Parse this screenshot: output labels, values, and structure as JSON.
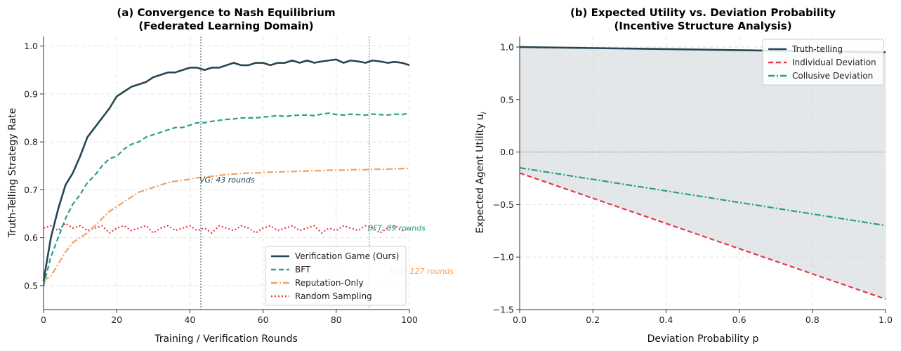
{
  "chart_data": [
    {
      "type": "line",
      "title_line1": "(a) Convergence to Nash Equilibrium",
      "title_line2": "(Federated Learning Domain)",
      "xlabel": "Training / Verification Rounds",
      "ylabel": "Truth-Telling Strategy Rate",
      "xlim": [
        0,
        100
      ],
      "ylim": [
        0.45,
        1.02
      ],
      "xticks": [
        0,
        20,
        40,
        60,
        80,
        100
      ],
      "yticks": [
        0.5,
        0.6,
        0.7,
        0.8,
        0.9,
        1.0
      ],
      "xtick_labels": [
        "0",
        "20",
        "40",
        "60",
        "80",
        "100"
      ],
      "ytick_labels": [
        "0.5",
        "0.6",
        "0.7",
        "0.8",
        "0.9",
        "1.0"
      ],
      "grid": true,
      "legend_position": "lower-right",
      "x": [
        0,
        2,
        4,
        6,
        8,
        10,
        12,
        14,
        16,
        18,
        20,
        22,
        24,
        26,
        28,
        30,
        32,
        34,
        36,
        38,
        40,
        42,
        44,
        46,
        48,
        50,
        52,
        54,
        56,
        58,
        60,
        62,
        64,
        66,
        68,
        70,
        72,
        74,
        76,
        78,
        80,
        82,
        84,
        86,
        88,
        90,
        92,
        94,
        96,
        98,
        100
      ],
      "series": [
        {
          "name": "Verification Game (Ours)",
          "color": "#264653",
          "style": "solid",
          "values": [
            0.51,
            0.6,
            0.66,
            0.71,
            0.735,
            0.77,
            0.81,
            0.83,
            0.85,
            0.87,
            0.895,
            0.905,
            0.915,
            0.92,
            0.925,
            0.935,
            0.94,
            0.945,
            0.945,
            0.95,
            0.955,
            0.955,
            0.95,
            0.955,
            0.955,
            0.96,
            0.965,
            0.96,
            0.96,
            0.965,
            0.965,
            0.96,
            0.965,
            0.965,
            0.97,
            0.965,
            0.97,
            0.965,
            0.968,
            0.97,
            0.972,
            0.965,
            0.97,
            0.968,
            0.965,
            0.97,
            0.968,
            0.965,
            0.967,
            0.965,
            0.96
          ]
        },
        {
          "name": "BFT",
          "color": "#2a9d8f",
          "style": "dashed",
          "values": [
            0.5,
            0.56,
            0.6,
            0.64,
            0.67,
            0.69,
            0.715,
            0.73,
            0.75,
            0.765,
            0.77,
            0.785,
            0.795,
            0.8,
            0.81,
            0.815,
            0.82,
            0.825,
            0.83,
            0.83,
            0.835,
            0.84,
            0.84,
            0.843,
            0.845,
            0.847,
            0.848,
            0.85,
            0.85,
            0.85,
            0.852,
            0.853,
            0.855,
            0.853,
            0.855,
            0.856,
            0.856,
            0.855,
            0.858,
            0.86,
            0.857,
            0.856,
            0.858,
            0.857,
            0.856,
            0.858,
            0.857,
            0.856,
            0.858,
            0.857,
            0.86
          ]
        },
        {
          "name": "Reputation-Only",
          "color": "#f4a261",
          "style": "dashdot",
          "values": [
            0.51,
            0.52,
            0.545,
            0.57,
            0.59,
            0.6,
            0.61,
            0.625,
            0.64,
            0.655,
            0.665,
            0.675,
            0.685,
            0.695,
            0.7,
            0.705,
            0.71,
            0.715,
            0.718,
            0.72,
            0.722,
            0.725,
            0.727,
            0.728,
            0.73,
            0.732,
            0.733,
            0.734,
            0.735,
            0.735,
            0.736,
            0.737,
            0.737,
            0.738,
            0.738,
            0.739,
            0.739,
            0.74,
            0.74,
            0.741,
            0.741,
            0.741,
            0.742,
            0.742,
            0.742,
            0.743,
            0.743,
            0.743,
            0.744,
            0.744,
            0.745
          ]
        },
        {
          "name": "Random Sampling",
          "color": "#e63946",
          "style": "dotted",
          "values": [
            0.62,
            0.625,
            0.615,
            0.63,
            0.62,
            0.625,
            0.615,
            0.62,
            0.625,
            0.61,
            0.62,
            0.625,
            0.615,
            0.62,
            0.625,
            0.61,
            0.62,
            0.625,
            0.615,
            0.62,
            0.625,
            0.615,
            0.62,
            0.61,
            0.625,
            0.62,
            0.615,
            0.625,
            0.62,
            0.61,
            0.62,
            0.625,
            0.615,
            0.62,
            0.625,
            0.615,
            0.62,
            0.625,
            0.61,
            0.62,
            0.615,
            0.625,
            0.62,
            0.615,
            0.625,
            0.62,
            0.61,
            0.62,
            0.625,
            0.615,
            0.62
          ]
        }
      ],
      "vlines": [
        {
          "x": 43,
          "color": "#264653"
        },
        {
          "x": 89,
          "color": "#2a9d8f"
        }
      ],
      "annotations": [
        {
          "text": "VG: 43 rounds",
          "x": 43,
          "y": 0.715,
          "color": "#264653"
        },
        {
          "text": "BFT: 89 rounds",
          "x": 89,
          "y": 0.615,
          "color": "#2a9d8f"
        },
        {
          "text": "Rep: 127 rounds",
          "x": 95,
          "y": 0.525,
          "color": "#f4a261"
        }
      ]
    },
    {
      "type": "line",
      "title_line1": "(b) Expected Utility vs. Deviation Probability",
      "title_line2": "(Incentive Structure Analysis)",
      "xlabel": "Deviation Probability p",
      "ylabel": "Expected Agent Utility u",
      "ylabel_sub": "i",
      "xlim": [
        0,
        1
      ],
      "ylim": [
        -1.5,
        1.1
      ],
      "xticks": [
        0,
        0.2,
        0.4,
        0.6,
        0.8,
        1.0
      ],
      "yticks": [
        -1.5,
        -1.0,
        -0.5,
        0.0,
        0.5,
        1.0
      ],
      "xtick_labels": [
        "0.0",
        "0.2",
        "0.4",
        "0.6",
        "0.8",
        "1.0"
      ],
      "ytick_labels": [
        "−1.5",
        "−1.0",
        "−0.5",
        "0.0",
        "0.5",
        "1.0"
      ],
      "grid": true,
      "legend_position": "top-right",
      "fill_color": "#264653",
      "zero_line": true,
      "x": [
        0,
        1
      ],
      "series": [
        {
          "name": "Truth-telling",
          "color": "#264653",
          "style": "solid",
          "values": [
            1.0,
            0.95
          ]
        },
        {
          "name": "Individual Deviation",
          "color": "#e63946",
          "style": "dashed",
          "values": [
            -0.2,
            -1.4
          ]
        },
        {
          "name": "Collusive Deviation",
          "color": "#2a9d8f",
          "style": "dashdot",
          "values": [
            -0.15,
            -0.7
          ]
        }
      ]
    }
  ]
}
